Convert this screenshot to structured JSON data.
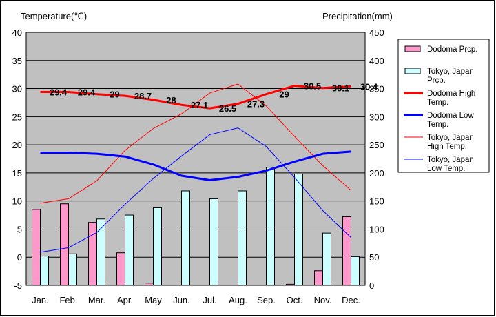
{
  "chart_data": {
    "type": "bar+line",
    "y_left_label": "Temperature(℃)",
    "y_right_label": "Precipitation(mm)",
    "y_left_range": [
      -5,
      40
    ],
    "y_left_ticks": [
      "-5",
      "0",
      "5",
      "10",
      "15",
      "20",
      "25",
      "30",
      "35",
      "40"
    ],
    "y_right_range": [
      0,
      450
    ],
    "y_right_ticks": [
      "0",
      "50",
      "100",
      "150",
      "200",
      "250",
      "300",
      "350",
      "400",
      "450"
    ],
    "categories": [
      "Jan.",
      "Feb.",
      "Mar.",
      "Apr.",
      "May",
      "Jun.",
      "Jul.",
      "Aug.",
      "Sep.",
      "Oct.",
      "Nov.",
      "Dec."
    ],
    "grid": true,
    "legend_position": "right",
    "series": [
      {
        "name": "Dodoma Prcp.",
        "kind": "bar",
        "axis": "right",
        "color": "#ff99cc",
        "values": [
          135,
          145,
          112,
          58,
          4,
          0,
          0,
          0,
          0,
          2,
          26,
          122
        ]
      },
      {
        "name": "Tokyo, Japan Prcp.",
        "kind": "bar",
        "axis": "right",
        "color": "#ccffff",
        "values": [
          52,
          56,
          118,
          125,
          138,
          168,
          154,
          168,
          210,
          198,
          93,
          51
        ]
      },
      {
        "name": "Dodoma High Temp.",
        "kind": "line",
        "axis": "left",
        "color": "#ff0000",
        "width": 3,
        "values": [
          29.4,
          29.4,
          29.0,
          28.7,
          28.0,
          27.1,
          26.5,
          27.3,
          29.0,
          30.5,
          30.1,
          30.4
        ],
        "labels": [
          "29.4",
          "29.4",
          "29",
          "28.7",
          "28",
          "27.1",
          "26.5",
          "27.3",
          "29",
          "30.5",
          "30.1",
          "30.4"
        ]
      },
      {
        "name": "Dodoma Low Temp.",
        "kind": "line",
        "axis": "left",
        "color": "#0000ff",
        "width": 3,
        "values": [
          18.6,
          18.6,
          18.4,
          17.9,
          16.5,
          14.5,
          13.7,
          14.3,
          15.4,
          17.0,
          18.4,
          18.8
        ]
      },
      {
        "name": "Tokyo, Japan High Temp.",
        "kind": "line",
        "axis": "left",
        "color": "#ff0000",
        "width": 1,
        "values": [
          9.6,
          10.4,
          13.6,
          19.0,
          22.9,
          25.5,
          29.2,
          30.8,
          26.9,
          21.5,
          16.3,
          11.9
        ]
      },
      {
        "name": "Tokyo, Japan Low Temp.",
        "kind": "line",
        "axis": "left",
        "color": "#0000ff",
        "width": 1,
        "values": [
          0.9,
          1.7,
          4.4,
          9.4,
          14.0,
          18.0,
          21.8,
          23.0,
          19.7,
          14.2,
          8.3,
          3.5
        ]
      }
    ],
    "legend": [
      {
        "lines": [
          "Dodoma Prcp."
        ],
        "kind": "box",
        "color": "#ff99cc"
      },
      {
        "lines": [
          "Tokyo, Japan",
          "Prcp."
        ],
        "kind": "box",
        "color": "#ccffff"
      },
      {
        "lines": [
          "Dodoma High",
          "Temp."
        ],
        "kind": "line",
        "color": "#ff0000",
        "width": 3
      },
      {
        "lines": [
          "Dodoma Low",
          "Temp."
        ],
        "kind": "line",
        "color": "#0000ff",
        "width": 3
      },
      {
        "lines": [
          "Tokyo, Japan",
          "High Temp."
        ],
        "kind": "line",
        "color": "#ff0000",
        "width": 1
      },
      {
        "lines": [
          "Tokyo, Japan",
          "Low Temp."
        ],
        "kind": "line",
        "color": "#0000ff",
        "width": 1
      }
    ],
    "plot_background": "#c0c0c0"
  }
}
